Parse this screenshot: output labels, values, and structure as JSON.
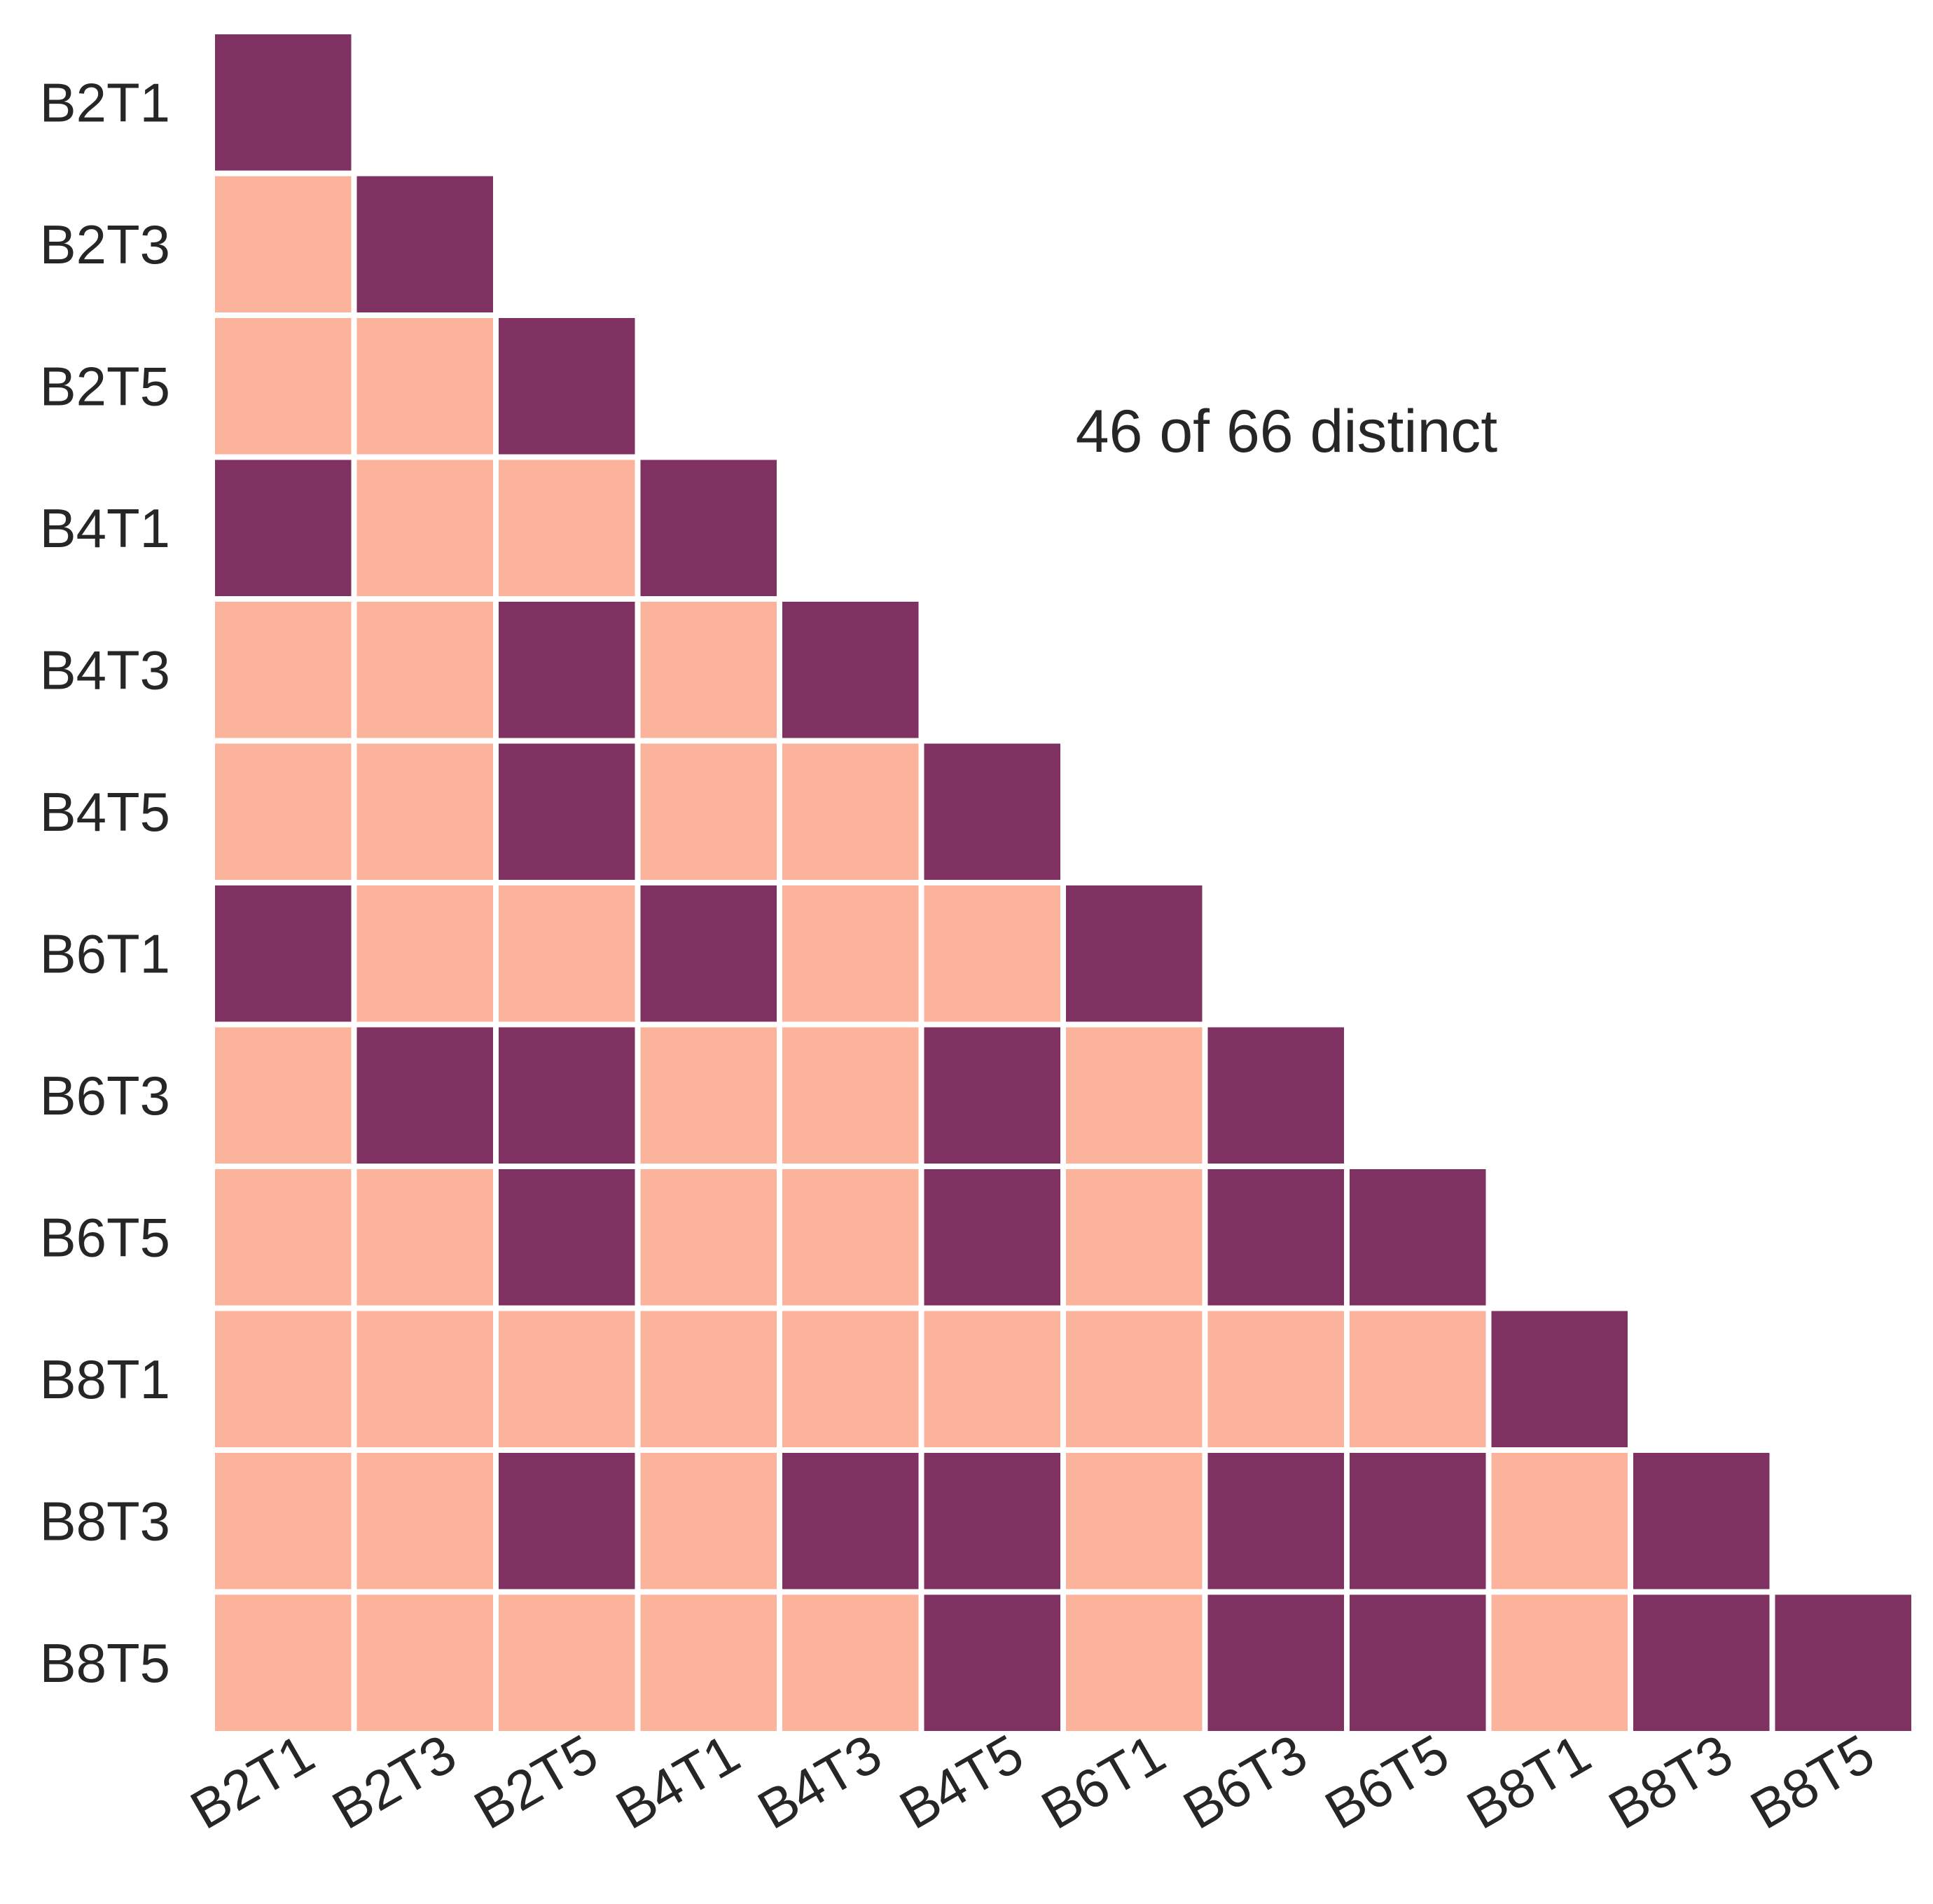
{
  "chart_data": {
    "type": "heatmap",
    "title": "",
    "xlabel": "",
    "ylabel": "",
    "labels": [
      "B2T1",
      "B2T3",
      "B2T5",
      "B4T1",
      "B4T3",
      "B4T5",
      "B6T1",
      "B6T3",
      "B6T5",
      "B8T1",
      "B8T3",
      "B8T5"
    ],
    "mask": "upper-triangle",
    "matrix": [
      [
        1
      ],
      [
        0,
        1
      ],
      [
        0,
        0,
        1
      ],
      [
        1,
        0,
        0,
        1
      ],
      [
        0,
        0,
        1,
        0,
        1
      ],
      [
        0,
        0,
        1,
        0,
        0,
        1
      ],
      [
        1,
        0,
        0,
        1,
        0,
        0,
        1
      ],
      [
        0,
        1,
        1,
        0,
        0,
        1,
        0,
        1
      ],
      [
        0,
        0,
        1,
        0,
        0,
        1,
        0,
        1,
        1
      ],
      [
        0,
        0,
        0,
        0,
        0,
        0,
        0,
        0,
        0,
        1
      ],
      [
        0,
        0,
        1,
        0,
        1,
        1,
        0,
        1,
        1,
        0,
        1
      ],
      [
        0,
        0,
        0,
        0,
        0,
        1,
        0,
        1,
        1,
        0,
        1,
        1
      ]
    ],
    "colors": {
      "1": "#7f3262",
      "0": "#fbb39b"
    },
    "grid": false,
    "legend": "none",
    "annotation": "46 of 66 distinct"
  }
}
